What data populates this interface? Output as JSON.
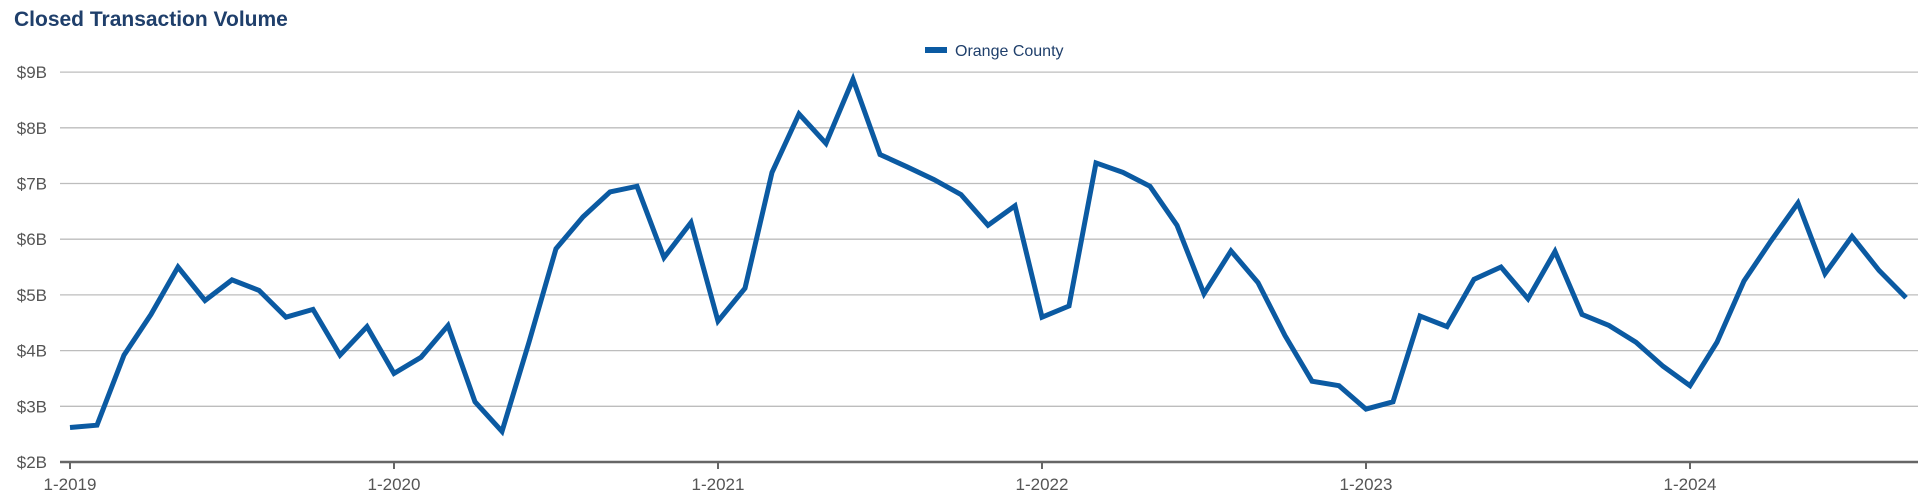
{
  "chart_data": {
    "type": "line",
    "title": "Closed Transaction Volume",
    "xlabel": "",
    "ylabel": "",
    "ylim": [
      2,
      9.3
    ],
    "yticks": [
      2,
      3,
      4,
      5,
      6,
      7,
      8,
      9
    ],
    "ytick_labels": [
      "$2B",
      "$3B",
      "$4B",
      "$5B",
      "$6B",
      "$7B",
      "$8B",
      "$9B"
    ],
    "xlim": [
      "2019-01",
      "2024-09"
    ],
    "xticks": [
      "2019-01",
      "2020-01",
      "2021-01",
      "2022-01",
      "2023-01",
      "2024-01"
    ],
    "xtick_labels": [
      "1-2019",
      "1-2020",
      "1-2021",
      "1-2022",
      "1-2023",
      "1-2024"
    ],
    "grid": true,
    "legend_position": "top-center",
    "series": [
      {
        "name": "Orange County",
        "color": "#0b5aa2",
        "x": [
          "2019-01",
          "2019-02",
          "2019-03",
          "2019-04",
          "2019-05",
          "2019-06",
          "2019-07",
          "2019-08",
          "2019-09",
          "2019-10",
          "2019-11",
          "2019-12",
          "2020-01",
          "2020-02",
          "2020-03",
          "2020-04",
          "2020-05",
          "2020-06",
          "2020-07",
          "2020-08",
          "2020-09",
          "2020-10",
          "2020-11",
          "2020-12",
          "2021-01",
          "2021-02",
          "2021-03",
          "2021-04",
          "2021-05",
          "2021-06",
          "2021-07",
          "2021-08",
          "2021-09",
          "2021-10",
          "2021-11",
          "2021-12",
          "2022-01",
          "2022-02",
          "2022-03",
          "2022-04",
          "2022-05",
          "2022-06",
          "2022-07",
          "2022-08",
          "2022-09",
          "2022-10",
          "2022-11",
          "2022-12",
          "2023-01",
          "2023-02",
          "2023-03",
          "2023-04",
          "2023-05",
          "2023-06",
          "2023-07",
          "2023-08",
          "2023-09",
          "2023-10",
          "2023-11",
          "2023-12",
          "2024-01",
          "2024-02",
          "2024-03",
          "2024-04",
          "2024-05",
          "2024-06",
          "2024-07",
          "2024-08",
          "2024-09"
        ],
        "values": [
          2.62,
          2.66,
          3.92,
          4.65,
          5.5,
          4.9,
          5.27,
          5.08,
          4.6,
          4.74,
          3.92,
          4.43,
          3.59,
          3.88,
          4.45,
          3.08,
          2.55,
          4.15,
          5.83,
          6.4,
          6.85,
          6.95,
          5.67,
          6.3,
          4.53,
          5.12,
          7.2,
          8.25,
          7.72,
          8.87,
          7.52,
          7.3,
          7.07,
          6.8,
          6.25,
          6.6,
          4.6,
          4.8,
          7.37,
          7.2,
          6.95,
          6.25,
          5.02,
          5.79,
          5.22,
          4.27,
          3.45,
          3.37,
          2.95,
          3.08,
          4.62,
          4.43,
          5.28,
          5.5,
          4.93,
          5.78,
          4.65,
          4.45,
          4.15,
          3.72,
          3.37,
          4.15,
          5.25,
          5.97,
          6.65,
          5.38,
          6.05,
          5.44,
          4.95
        ]
      }
    ]
  }
}
